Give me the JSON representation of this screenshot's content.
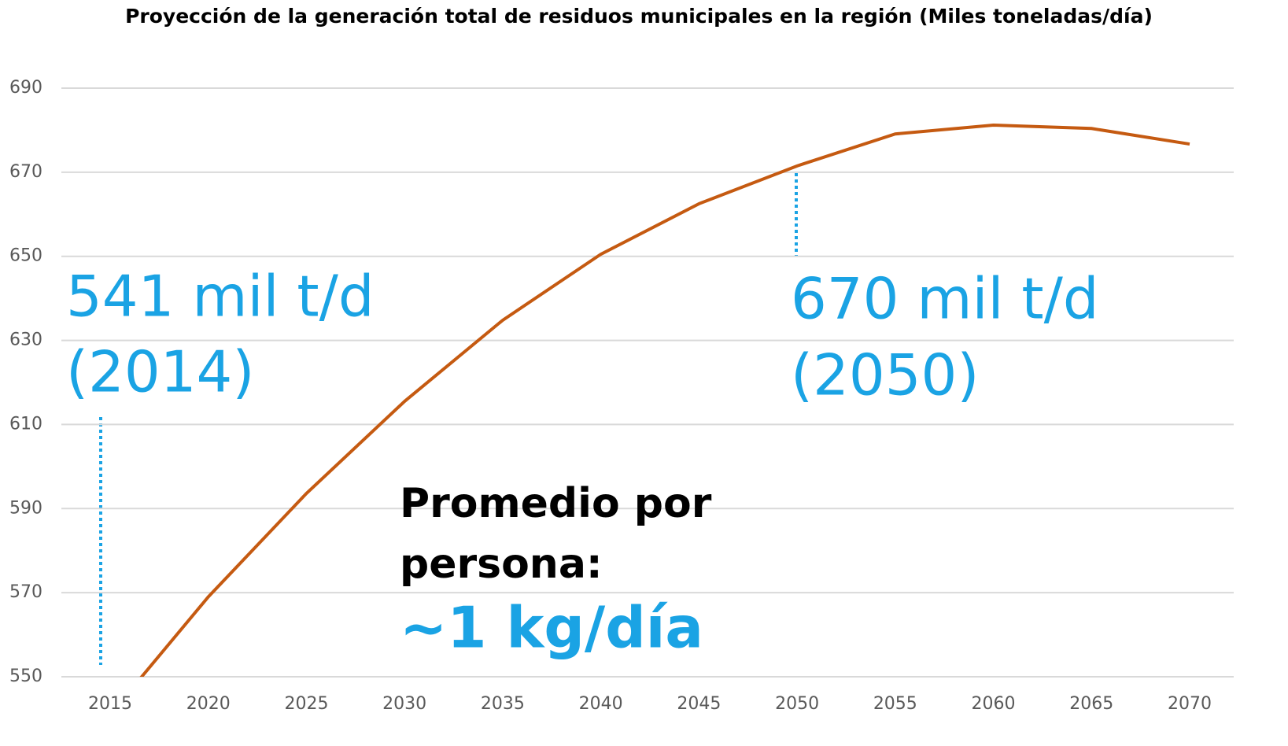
{
  "chart_data": {
    "type": "line",
    "title": "Proyección de la generación total  de residuos municipales en la región (Miles toneladas/día)",
    "x": [
      2015,
      2020,
      2025,
      2030,
      2035,
      2040,
      2045,
      2050,
      2055,
      2060,
      2065,
      2070
    ],
    "series": [
      {
        "name": "Generación total",
        "color": "#c55a11",
        "values": [
          541,
          569,
          593.6,
          615.5,
          634.8,
          650.5,
          662.5,
          671.5,
          679.1,
          681.2,
          680.4,
          676.7
        ]
      }
    ],
    "xlim": [
      2010.5,
      2072
    ],
    "xticks": [
      2015,
      2020,
      2025,
      2030,
      2035,
      2040,
      2045,
      2050,
      2055,
      2060,
      2065,
      2070
    ],
    "ylim": [
      550,
      690
    ],
    "yticks": [
      550,
      570,
      590,
      610,
      630,
      650,
      670,
      690
    ],
    "grid": true,
    "annotations": [
      "541 mil t/d",
      "(2014)",
      "670 mil t/d",
      "(2050)",
      "Promedio por",
      "persona:",
      "~1 kg/día"
    ]
  }
}
